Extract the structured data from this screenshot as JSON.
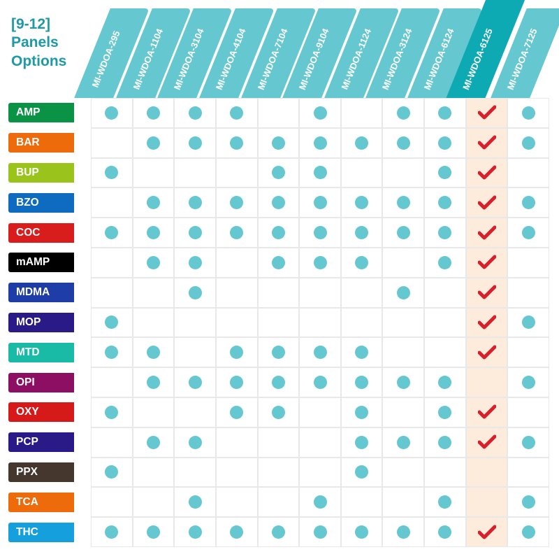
{
  "title_lines": [
    "[9-12]",
    "Panels",
    "Options"
  ],
  "title_color": "#1d9aa5",
  "header_bg_regular": "#65c7cf",
  "header_bg_featured": "#0eaab3",
  "header_text_color": "#ffffff",
  "dot_color": "#65c7cf",
  "check_color": "#d9202a",
  "featured_cell_bg": "#fdecdc",
  "grid_border": "#e8e8e8",
  "columns": [
    {
      "id": "MI-WDOA-295",
      "featured": false
    },
    {
      "id": "MI-WDOA-1104",
      "featured": false
    },
    {
      "id": "MI-WDOA-3104",
      "featured": false
    },
    {
      "id": "MI-WDOA-4104",
      "featured": false
    },
    {
      "id": "MI-WDOA-7104",
      "featured": false
    },
    {
      "id": "MI-WDOA-9104",
      "featured": false
    },
    {
      "id": "MI-WDOA-1124",
      "featured": false
    },
    {
      "id": "MI-WDOA-3124",
      "featured": false
    },
    {
      "id": "MI-WDOA-6124",
      "featured": false
    },
    {
      "id": "MI-WDOA-6125",
      "featured": true
    },
    {
      "id": "MI-WDOA-7125",
      "featured": false
    }
  ],
  "rows": [
    {
      "label": "AMP",
      "color": "#0a9344",
      "marks": [
        "d",
        "d",
        "d",
        "d",
        "",
        "d",
        "",
        "d",
        "d",
        "c",
        "d"
      ]
    },
    {
      "label": "BAR",
      "color": "#ee6b0b",
      "marks": [
        "",
        "d",
        "d",
        "d",
        "d",
        "d",
        "d",
        "d",
        "d",
        "c",
        "d"
      ]
    },
    {
      "label": "BUP",
      "color": "#9ac31c",
      "marks": [
        "d",
        "",
        "",
        "",
        "d",
        "d",
        "",
        "",
        "d",
        "c",
        ""
      ]
    },
    {
      "label": "BZO",
      "color": "#0f6bbf",
      "marks": [
        "",
        "d",
        "d",
        "d",
        "d",
        "d",
        "d",
        "d",
        "d",
        "c",
        "d"
      ]
    },
    {
      "label": "COC",
      "color": "#d91c1c",
      "marks": [
        "d",
        "d",
        "d",
        "d",
        "d",
        "d",
        "d",
        "d",
        "d",
        "c",
        "d"
      ]
    },
    {
      "label": "mAMP",
      "color": "#000000",
      "marks": [
        "",
        "d",
        "d",
        "",
        "d",
        "d",
        "d",
        "",
        "d",
        "c",
        ""
      ]
    },
    {
      "label": "MDMA",
      "color": "#1f3da6",
      "marks": [
        "",
        "",
        "d",
        "",
        "",
        "",
        "",
        "d",
        "",
        "c",
        ""
      ]
    },
    {
      "label": "MOP",
      "color": "#2a1a87",
      "marks": [
        "d",
        "",
        "",
        "",
        "",
        "",
        "",
        "",
        "",
        "c",
        "d"
      ]
    },
    {
      "label": "MTD",
      "color": "#1abba6",
      "marks": [
        "d",
        "d",
        "",
        "d",
        "d",
        "d",
        "d",
        "",
        "",
        "c",
        ""
      ]
    },
    {
      "label": "OPI",
      "color": "#8c0f63",
      "marks": [
        "",
        "d",
        "d",
        "d",
        "d",
        "d",
        "d",
        "d",
        "d",
        "",
        "d"
      ]
    },
    {
      "label": "OXY",
      "color": "#d61a1a",
      "marks": [
        "d",
        "",
        "",
        "d",
        "d",
        "",
        "d",
        "",
        "d",
        "c",
        ""
      ]
    },
    {
      "label": "PCP",
      "color": "#2a1a87",
      "marks": [
        "",
        "d",
        "d",
        "",
        "",
        "",
        "d",
        "d",
        "d",
        "c",
        "d"
      ]
    },
    {
      "label": "PPX",
      "color": "#45372e",
      "marks": [
        "d",
        "",
        "",
        "",
        "",
        "",
        "d",
        "",
        "",
        "",
        ""
      ]
    },
    {
      "label": "TCA",
      "color": "#ee6b0b",
      "marks": [
        "",
        "",
        "d",
        "",
        "",
        "d",
        "",
        "",
        "d",
        "",
        "d"
      ]
    },
    {
      "label": "THC",
      "color": "#159fdd",
      "marks": [
        "d",
        "d",
        "d",
        "d",
        "d",
        "d",
        "d",
        "d",
        "d",
        "c",
        "d"
      ]
    }
  ]
}
